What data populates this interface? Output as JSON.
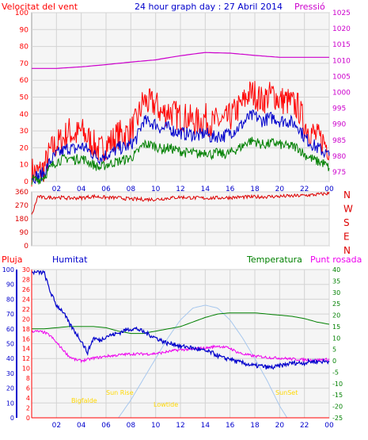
{
  "header": {
    "left": "Velocitat del vent",
    "title": "24 hour graph day : 27 Abril 2014",
    "right": "Pressió"
  },
  "bottom_header": {
    "rain": "Pluja",
    "humidity": "Humitat",
    "temperature": "Temperatura",
    "dewpoint": "Punt rosada"
  },
  "colors": {
    "background": "#ffffff",
    "plot_bg": "#f5f5f5",
    "grid": "#d3d3d3",
    "wind_max": "#ff0000",
    "wind_avg": "#0000cc",
    "wind_min": "#008000",
    "pressure": "#cc00cc",
    "direction": "#dd0000",
    "rain": "#ff0000",
    "humidity": "#0000cc",
    "temperature": "#008000",
    "dewpoint": "#ee00ee",
    "solar": "#a8c8ee",
    "sun_labels": "#ffd800"
  },
  "chart_data": [
    {
      "type": "line",
      "name": "wind_pressure",
      "x_ticks": [
        "02",
        "04",
        "06",
        "08",
        "10",
        "12",
        "14",
        "16",
        "18",
        "20",
        "22",
        "00"
      ],
      "x_range": [
        0,
        24
      ],
      "y_left": {
        "label": "Velocitat del vent",
        "range": [
          0,
          100
        ],
        "ticks": [
          0,
          10,
          20,
          30,
          40,
          50,
          60,
          70,
          80,
          90,
          100
        ]
      },
      "y_right": {
        "label": "Pressió",
        "range": [
          972,
          1025
        ],
        "ticks": [
          975,
          980,
          985,
          990,
          995,
          1000,
          1005,
          1010,
          1015,
          1020,
          1025
        ]
      },
      "grid": true,
      "series": [
        {
          "key": "gust",
          "axis": "left",
          "x": [
            0,
            0.5,
            1,
            1.5,
            2,
            2.5,
            3,
            3.5,
            4,
            4.5,
            5,
            5.5,
            6,
            6.5,
            7,
            7.5,
            8,
            8.5,
            9,
            9.5,
            10,
            10.5,
            11,
            11.5,
            12,
            12.5,
            13,
            13.5,
            14,
            14.5,
            15,
            15.5,
            16,
            16.5,
            17,
            17.5,
            18,
            18.5,
            19,
            19.5,
            20,
            20.5,
            21,
            21.5,
            22,
            22.5,
            23,
            23.5,
            24
          ],
          "values": [
            6,
            5,
            8,
            18,
            22,
            25,
            30,
            27,
            30,
            26,
            22,
            18,
            22,
            24,
            28,
            28,
            30,
            36,
            48,
            46,
            46,
            40,
            42,
            40,
            38,
            38,
            36,
            35,
            38,
            34,
            36,
            35,
            38,
            42,
            46,
            52,
            52,
            48,
            50,
            52,
            48,
            48,
            46,
            44,
            34,
            30,
            26,
            24,
            20
          ],
          "jitter": 9
        },
        {
          "key": "avg",
          "axis": "left",
          "x": [
            0,
            0.5,
            1,
            1.5,
            2,
            2.5,
            3,
            3.5,
            4,
            4.5,
            5,
            5.5,
            6,
            6.5,
            7,
            7.5,
            8,
            8.5,
            9,
            9.5,
            10,
            10.5,
            11,
            11.5,
            12,
            12.5,
            13,
            13.5,
            14,
            14.5,
            15,
            15.5,
            16,
            16.5,
            17,
            17.5,
            18,
            18.5,
            19,
            19.5,
            20,
            20.5,
            21,
            21.5,
            22,
            22.5,
            23,
            23.5,
            24
          ],
          "values": [
            3,
            3,
            5,
            12,
            16,
            18,
            20,
            19,
            21,
            19,
            16,
            14,
            16,
            17,
            20,
            20,
            22,
            26,
            36,
            35,
            34,
            31,
            32,
            30,
            29,
            28,
            28,
            27,
            29,
            26,
            27,
            27,
            29,
            31,
            34,
            38,
            39,
            36,
            37,
            38,
            36,
            36,
            35,
            33,
            26,
            23,
            20,
            18,
            15
          ],
          "jitter": 4
        },
        {
          "key": "lull",
          "axis": "left",
          "x": [
            0,
            0.5,
            1,
            1.5,
            2,
            2.5,
            3,
            3.5,
            4,
            4.5,
            5,
            5.5,
            6,
            6.5,
            7,
            7.5,
            8,
            8.5,
            9,
            9.5,
            10,
            10.5,
            11,
            11.5,
            12,
            12.5,
            13,
            13.5,
            14,
            14.5,
            15,
            15.5,
            16,
            16.5,
            17,
            17.5,
            18,
            18.5,
            19,
            19.5,
            20,
            20.5,
            21,
            21.5,
            22,
            22.5,
            23,
            23.5,
            24
          ],
          "values": [
            1,
            1,
            3,
            8,
            12,
            13,
            14,
            13,
            14,
            12,
            10,
            8,
            10,
            11,
            12,
            13,
            14,
            17,
            22,
            22,
            21,
            19,
            20,
            19,
            18,
            17,
            17,
            16,
            18,
            16,
            17,
            16,
            17,
            19,
            21,
            24,
            24,
            22,
            22,
            23,
            22,
            21,
            21,
            20,
            16,
            14,
            12,
            11,
            8
          ],
          "jitter": 3
        },
        {
          "key": "pressure",
          "axis": "right",
          "x": [
            0,
            2,
            4,
            6,
            8,
            10,
            12,
            14,
            16,
            18,
            20,
            22,
            24
          ],
          "values": [
            1007.5,
            1007.5,
            1008.0,
            1008.7,
            1009.5,
            1010.2,
            1011.5,
            1012.5,
            1012.3,
            1011.6,
            1011.0,
            1011.0,
            1011.0
          ],
          "jitter": 0
        }
      ]
    },
    {
      "type": "line",
      "name": "wind_direction",
      "x_range": [
        0,
        24
      ],
      "y_left": {
        "range": [
          0,
          360
        ],
        "ticks": [
          0,
          90,
          180,
          270,
          360
        ]
      },
      "y_right_labels": [
        "N",
        "W",
        "S",
        "E",
        "N"
      ],
      "grid": true,
      "series": [
        {
          "key": "direction",
          "x": [
            0,
            0.5,
            1,
            2,
            3,
            4,
            5,
            6,
            7,
            8,
            9,
            10,
            11,
            12,
            13,
            14,
            15,
            16,
            17,
            18,
            19,
            20,
            21,
            22,
            23,
            24
          ],
          "values": [
            200,
            330,
            320,
            325,
            318,
            320,
            330,
            322,
            320,
            312,
            310,
            310,
            318,
            325,
            320,
            318,
            320,
            322,
            325,
            326,
            328,
            330,
            332,
            336,
            342,
            350
          ],
          "jitter": 12
        }
      ]
    },
    {
      "type": "line",
      "name": "rain_humidity_temp_dew",
      "x_ticks": [
        "02",
        "04",
        "06",
        "08",
        "10",
        "12",
        "14",
        "16",
        "18",
        "20",
        "22",
        "00"
      ],
      "x_range": [
        0,
        24
      ],
      "y_rain": {
        "label": "Pluja",
        "range": [
          0,
          30
        ],
        "ticks": [
          0,
          2,
          4,
          6,
          8,
          10,
          12,
          14,
          16,
          18,
          20,
          22,
          24,
          26,
          28,
          30
        ]
      },
      "y_humidity": {
        "label": "Humitat",
        "range": [
          0,
          100
        ],
        "ticks": [
          0,
          10,
          20,
          30,
          40,
          50,
          60,
          70,
          80,
          90,
          100
        ]
      },
      "y_temperature": {
        "label": "Temperatura",
        "range": [
          -25,
          40
        ],
        "ticks": [
          -25,
          -20,
          -15,
          -10,
          -5,
          0,
          5,
          10,
          15,
          20,
          25,
          30,
          35,
          40
        ]
      },
      "annotations": [
        "Bigfalde",
        "Sun Rise",
        "Lowtide",
        "SunSet"
      ],
      "grid": true,
      "series": [
        {
          "key": "humidity",
          "axis": "humidity",
          "x": [
            0,
            0.5,
            1,
            1.5,
            2,
            2.5,
            3,
            3.5,
            4,
            4.5,
            5,
            5.5,
            6,
            6.5,
            7,
            7.5,
            8,
            8.5,
            9,
            9.5,
            10,
            10.5,
            11,
            11.5,
            12,
            12.5,
            13,
            13.5,
            14,
            14.5,
            15,
            15.5,
            16,
            16.5,
            17,
            17.5,
            18,
            18.5,
            19,
            19.5,
            20,
            20.5,
            21,
            21.5,
            22,
            22.5,
            23,
            23.5,
            24
          ],
          "values": [
            98,
            98,
            98,
            85,
            76,
            72,
            64,
            58,
            52,
            44,
            54,
            52,
            55,
            56,
            57,
            59,
            60,
            60,
            58,
            56,
            54,
            52,
            50,
            50,
            48,
            48,
            47,
            46,
            45,
            44,
            42,
            40,
            40,
            38,
            37,
            36,
            35,
            35,
            34,
            34,
            35,
            36,
            37,
            37,
            37,
            38,
            38,
            38,
            38
          ],
          "jitter": 1.5
        },
        {
          "key": "temperature",
          "axis": "temperature",
          "x": [
            0,
            1,
            2,
            3,
            4,
            5,
            6,
            7,
            8,
            9,
            10,
            11,
            12,
            13,
            14,
            15,
            16,
            17,
            18,
            19,
            20,
            21,
            22,
            23,
            24
          ],
          "values": [
            14,
            14,
            14.5,
            15,
            15,
            15,
            14.5,
            13,
            12,
            12,
            13,
            14,
            15,
            17,
            19,
            20.5,
            21,
            21,
            21,
            20.5,
            20,
            19.5,
            18.5,
            17,
            16
          ],
          "jitter": 0
        },
        {
          "key": "dewpoint",
          "axis": "temperature",
          "x": [
            0,
            0.5,
            1,
            1.5,
            2,
            2.5,
            3,
            3.5,
            4,
            4.5,
            5,
            5.5,
            6,
            6.5,
            7,
            7.5,
            8,
            8.5,
            9,
            9.5,
            10,
            10.5,
            11,
            11.5,
            12,
            12.5,
            13,
            13.5,
            14,
            14.5,
            15,
            15.5,
            16,
            16.5,
            17,
            17.5,
            18,
            18.5,
            19,
            19.5,
            20,
            20.5,
            21,
            21.5,
            22,
            22.5,
            23,
            23.5,
            24
          ],
          "values": [
            13,
            12.8,
            12.5,
            11,
            8,
            5,
            2,
            0.5,
            0,
            0.5,
            1.2,
            1.5,
            2,
            2.2,
            2.5,
            2.8,
            3,
            3,
            3,
            3,
            3.2,
            3.5,
            4,
            4.5,
            4.8,
            5,
            5,
            5.5,
            5.5,
            6,
            6.5,
            6,
            5.5,
            4,
            3,
            2.5,
            2,
            1.8,
            1.5,
            1.3,
            1.2,
            1,
            0.8,
            0.6,
            0.5,
            0.4,
            0.3,
            0.5,
            0.6
          ],
          "jitter": 0.6
        },
        {
          "key": "solar",
          "axis": "humidity",
          "x": [
            7,
            8,
            9,
            10,
            11,
            12,
            13,
            14,
            15,
            16,
            17,
            18,
            19,
            20,
            20.6
          ],
          "values": [
            0,
            12,
            26,
            40,
            54,
            66,
            74,
            76,
            74,
            66,
            54,
            40,
            25,
            8,
            0
          ],
          "jitter": 0
        },
        {
          "key": "rain",
          "axis": "rain",
          "x": [
            0,
            24
          ],
          "values": [
            0,
            0
          ],
          "jitter": 0
        }
      ]
    }
  ]
}
